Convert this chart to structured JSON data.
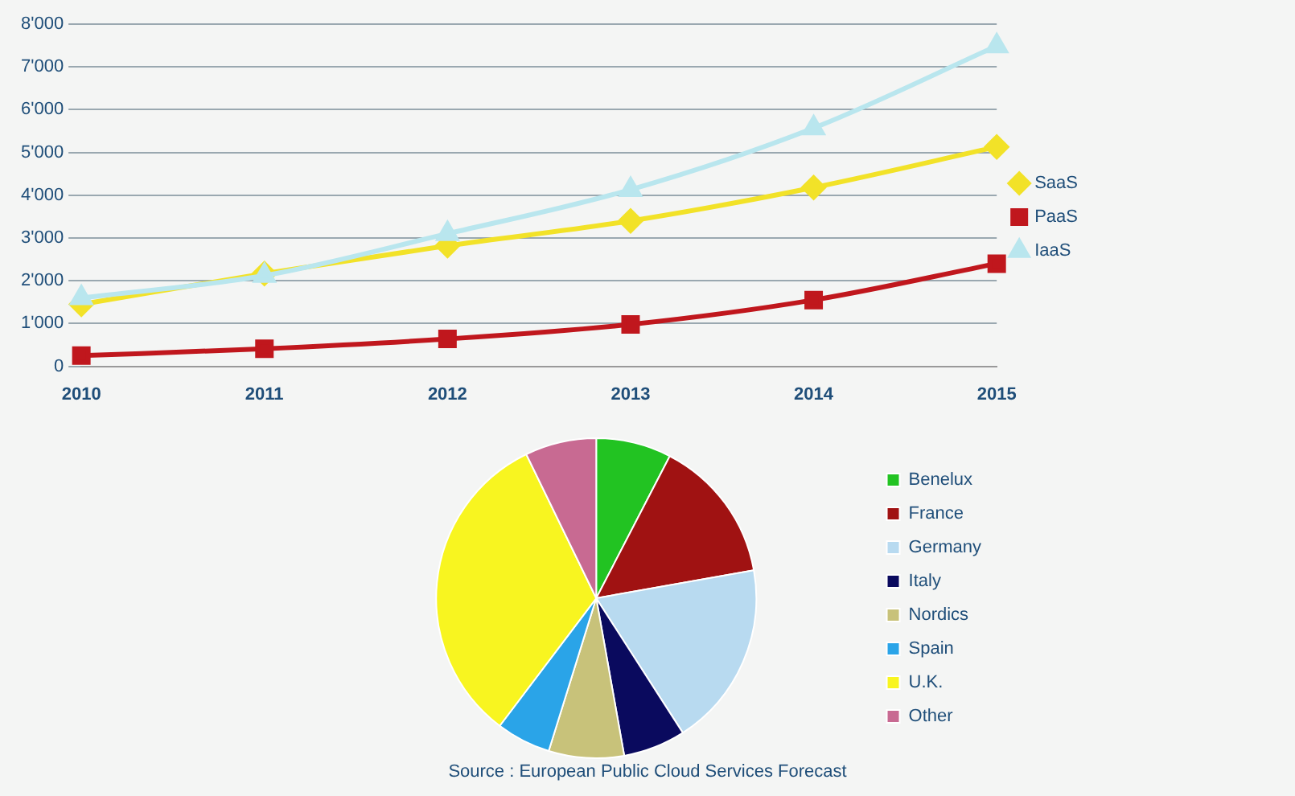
{
  "chart_data": [
    {
      "type": "line",
      "categories": [
        "2010",
        "2011",
        "2012",
        "2013",
        "2014",
        "2015"
      ],
      "series": [
        {
          "name": "SaaS",
          "color": "#f2e228",
          "marker": "diamond",
          "values": [
            1450,
            2170,
            2820,
            3400,
            4180,
            5130
          ]
        },
        {
          "name": "PaaS",
          "color": "#c0171d",
          "marker": "square",
          "values": [
            250,
            410,
            640,
            980,
            1550,
            2400
          ]
        },
        {
          "name": "IaaS",
          "color": "#b9e6ee",
          "marker": "triangle",
          "values": [
            1600,
            2120,
            3100,
            4130,
            5570,
            7490
          ]
        }
      ],
      "ylim": [
        0,
        8000
      ],
      "yticks": [
        {
          "value": 0,
          "label": "0"
        },
        {
          "value": 1000,
          "label": "1'000"
        },
        {
          "value": 2000,
          "label": "2'000"
        },
        {
          "value": 3000,
          "label": "3'000"
        },
        {
          "value": 4000,
          "label": "4'000"
        },
        {
          "value": 5000,
          "label": "5'000"
        },
        {
          "value": 6000,
          "label": "6'000"
        },
        {
          "value": 7000,
          "label": "7'000"
        },
        {
          "value": 8000,
          "label": "8'000"
        }
      ],
      "grid": "y",
      "legend": "right"
    },
    {
      "type": "pie",
      "categories": [
        "Benelux",
        "France",
        "Germany",
        "Italy",
        "Nordics",
        "Spain",
        "U.K.",
        "Other"
      ],
      "values": [
        7.6,
        14.6,
        18.7,
        6.3,
        7.6,
        5.5,
        32.5,
        7.2
      ],
      "colors": [
        "#22c322",
        "#a01212",
        "#b8daf0",
        "#0a0a5e",
        "#c8c27a",
        "#2aa4e8",
        "#f8f520",
        "#c86a92"
      ],
      "legend": "right",
      "annotations": [
        "Source : European Public Cloud Services Forecast"
      ]
    }
  ]
}
